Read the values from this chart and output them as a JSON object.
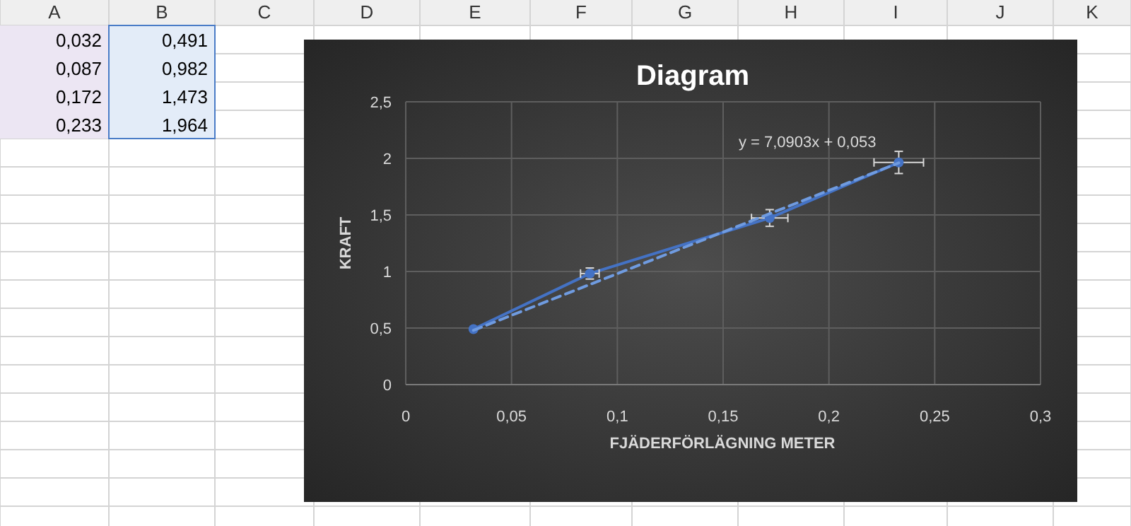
{
  "chart_data": [
    {
      "type": "other",
      "annotations": [
        "A",
        "B",
        "C",
        "D",
        "E",
        "F",
        "G",
        "H",
        "I",
        "J",
        "K",
        "0,032",
        "0,491",
        "0,087",
        "0,982",
        "0,172",
        "1,473",
        "0,233",
        "1,964"
      ]
    },
    {
      "type": "scatter",
      "title": "Diagram",
      "xlabel": "FJÄDERFÖRLÄGNING METER",
      "ylabel": "KRAFT",
      "annotations": [
        "y = 7,0903x + 0,053"
      ],
      "series": [
        {
          "type": "line",
          "color": "#4472c4",
          "x": [
            0.032,
            0.087,
            0.172,
            0.233
          ],
          "values": [
            0.491,
            0.982,
            1.473,
            1.964
          ],
          "errors": [
            null,
            0.049,
            0.074,
            0.098
          ],
          "xerrors": [
            null,
            0.0044,
            0.0086,
            0.0117
          ],
          "marker": "circle",
          "line_style": "solid"
        },
        {
          "type": "line",
          "color": "#6f9be0",
          "x": [
            0.032,
            0.233
          ],
          "values": [
            0.48,
            1.96
          ],
          "line_style": "dashed",
          "marker": "none"
        }
      ],
      "xlim": [
        0,
        0.3
      ],
      "xticks": [
        0,
        {
          "value": 0.05,
          "label": "0,05"
        },
        {
          "value": 0.1,
          "label": "0,1"
        },
        {
          "value": 0.15,
          "label": "0,15"
        },
        {
          "value": 0.2,
          "label": "0,2"
        },
        {
          "value": 0.25,
          "label": "0,25"
        },
        {
          "value": 0.3,
          "label": "0,3"
        }
      ],
      "ylim": [
        0,
        2.5
      ],
      "yticks": [
        0,
        {
          "value": 0.5,
          "label": "0,5"
        },
        1,
        {
          "value": 1.5,
          "label": "1,5"
        },
        2,
        {
          "value": 2.5,
          "label": "2,5"
        }
      ],
      "grid": true
    }
  ]
}
